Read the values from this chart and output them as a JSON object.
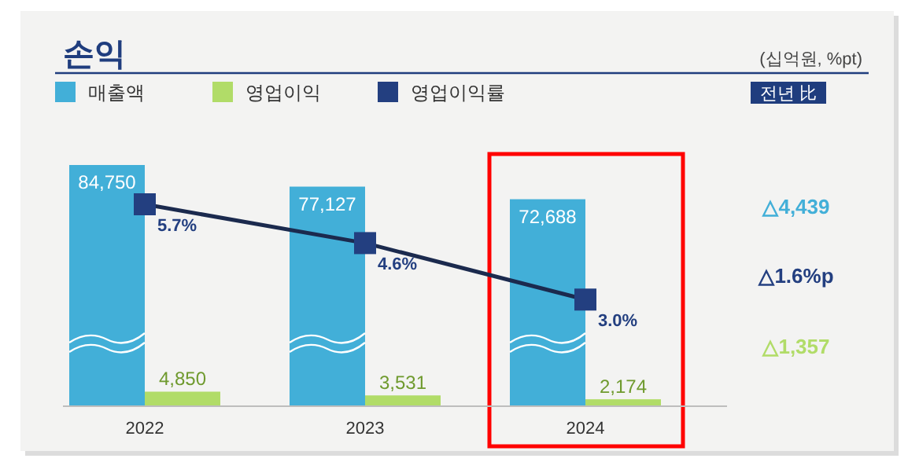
{
  "chart_data": {
    "type": "bar",
    "title": "손익",
    "subtitle": "(십억원, %pt)",
    "categories": [
      "2022",
      "2023",
      "2024"
    ],
    "series": [
      {
        "name": "매출액",
        "color": "#42afd8",
        "values": [
          84750,
          77127,
          72688
        ],
        "value_labels": [
          "84,750",
          "77,127",
          "72,688"
        ]
      },
      {
        "name": "영업이익",
        "color": "#b1dc68",
        "values": [
          4850,
          3531,
          2174
        ],
        "value_labels": [
          "4,850",
          "3,531",
          "2,174"
        ]
      },
      {
        "name": "영업이익률",
        "color": "#233f80",
        "type": "line",
        "axis": "y2",
        "marker": "square",
        "value_labels": [
          "5.7%",
          "4.6%",
          "3.0%"
        ],
        "values": [
          5.7,
          4.6,
          3.0
        ]
      }
    ],
    "data_labels": true,
    "legend": "top",
    "annotations": [
      "전년 比",
      "△4,439",
      "△1.6%p",
      "△1,357"
    ]
  }
}
